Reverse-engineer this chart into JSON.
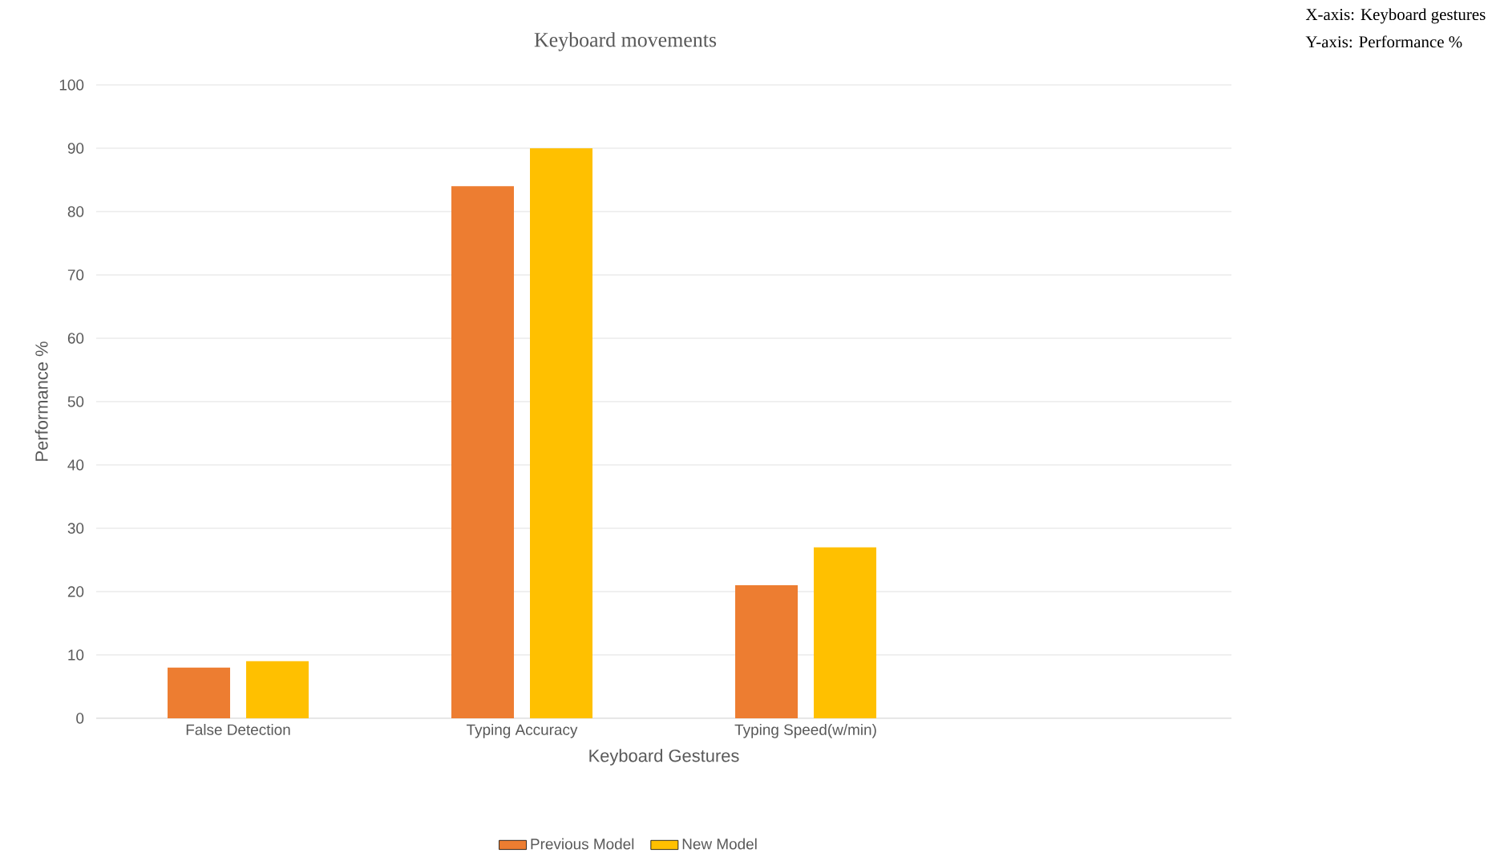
{
  "chart_data": {
    "type": "bar",
    "title": "Keyboard movements",
    "xlabel": "Keyboard Gestures",
    "ylabel": "Performance %",
    "annotations": [
      "X-axis: Keyboard gestures",
      "Y-axis:  Performance %"
    ],
    "categories": [
      "False Detection",
      "Typing Accuracy",
      "Typing Speed(w/min)",
      null
    ],
    "series": [
      {
        "name": "Previous Model",
        "color": "#ed7d31",
        "values": [
          8,
          84,
          21,
          null
        ]
      },
      {
        "name": "New Model",
        "color": "#ffc000",
        "values": [
          9,
          90,
          27,
          null
        ]
      }
    ],
    "ylim": [
      0,
      100
    ],
    "yticks": [
      0,
      10,
      20,
      30,
      40,
      50,
      60,
      70,
      80,
      90,
      100
    ],
    "grid": "y",
    "legend": "bottom"
  }
}
